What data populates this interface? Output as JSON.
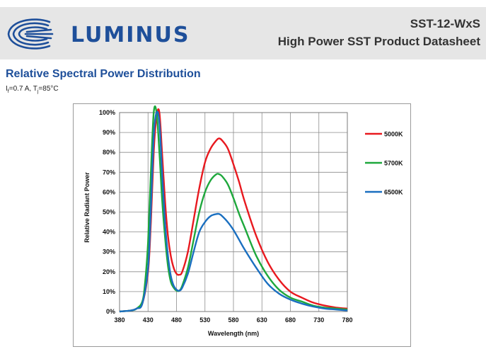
{
  "header": {
    "brand": "LUMINUS",
    "product_code": "SST-12-WxS",
    "doc_title": "High Power SST Product Datasheet"
  },
  "section": {
    "title": "Relative Spectral Power Distribution",
    "cond_if_prefix": "I",
    "cond_if_sub": "f",
    "cond_if_value": "=0.7 A, T",
    "cond_tj_sub": "j",
    "cond_tj_value": "=85°C"
  },
  "chart_data": {
    "type": "line",
    "title": "",
    "xlabel": "Wavelength (nm)",
    "ylabel": "Relative Radiant Power",
    "xlim": [
      380,
      780
    ],
    "ylim": [
      0,
      100
    ],
    "xticks": [
      380,
      430,
      480,
      530,
      580,
      630,
      680,
      730,
      780
    ],
    "yticks": [
      0,
      10,
      20,
      30,
      40,
      50,
      60,
      70,
      80,
      90,
      100
    ],
    "ytick_labels": [
      "0%",
      "10%",
      "20%",
      "30%",
      "40%",
      "50%",
      "60%",
      "70%",
      "80%",
      "90%",
      "100%"
    ],
    "grid": true,
    "legend_position": "right",
    "series": [
      {
        "name": "5000K",
        "color": "#e8191f",
        "x": [
          380,
          400,
          410,
          420,
          430,
          435,
          440,
          445,
          450,
          455,
          460,
          465,
          470,
          475,
          480,
          485,
          490,
          500,
          510,
          520,
          530,
          540,
          550,
          555,
          560,
          570,
          580,
          590,
          600,
          620,
          640,
          660,
          680,
          700,
          720,
          740,
          760,
          780
        ],
        "y": [
          0,
          0.5,
          1.5,
          4,
          20,
          45,
          80,
          98,
          100,
          78,
          55,
          38,
          28,
          22,
          19,
          18.5,
          20,
          30,
          46,
          62,
          75,
          82,
          86,
          87,
          86,
          82,
          74,
          65,
          55,
          38,
          25,
          16,
          10,
          7,
          4.5,
          3,
          2,
          1.5
        ]
      },
      {
        "name": "5700K",
        "color": "#1ea83c",
        "x": [
          380,
          400,
          410,
          420,
          425,
          430,
          435,
          440,
          445,
          450,
          455,
          460,
          465,
          470,
          475,
          480,
          485,
          490,
          500,
          510,
          520,
          530,
          540,
          550,
          555,
          560,
          570,
          580,
          590,
          600,
          620,
          640,
          660,
          680,
          700,
          720,
          740,
          760,
          780
        ],
        "y": [
          0,
          0.5,
          1.5,
          5,
          15,
          35,
          70,
          100,
          100,
          80,
          55,
          37,
          23,
          15,
          12,
          10.5,
          10.5,
          13,
          22,
          36,
          50,
          60,
          66,
          69,
          69,
          68,
          64,
          57,
          49,
          42,
          28,
          18,
          11,
          7,
          5,
          3,
          2,
          1.5,
          1
        ]
      },
      {
        "name": "6500K",
        "color": "#1a6fc0",
        "x": [
          380,
          400,
          410,
          420,
          430,
          435,
          440,
          445,
          450,
          455,
          460,
          465,
          470,
          475,
          480,
          485,
          490,
          500,
          510,
          520,
          530,
          540,
          550,
          555,
          560,
          570,
          580,
          590,
          600,
          620,
          640,
          660,
          680,
          700,
          720,
          740,
          760,
          780
        ],
        "y": [
          0,
          0.5,
          1.5,
          4,
          22,
          52,
          88,
          100,
          95,
          68,
          44,
          28,
          18,
          13,
          11,
          10.5,
          12,
          19,
          30,
          40,
          45,
          48,
          49,
          49,
          48,
          45,
          41,
          36,
          31,
          22,
          14,
          9,
          6,
          4,
          2.5,
          1.5,
          1,
          0.5
        ]
      }
    ]
  }
}
